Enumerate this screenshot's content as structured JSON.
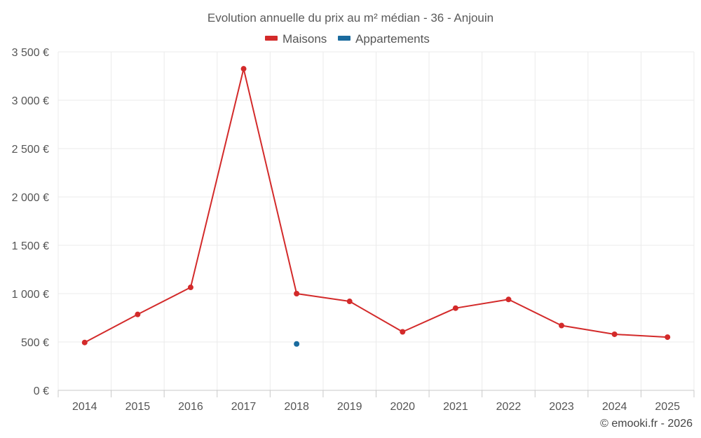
{
  "chart_data": {
    "type": "line",
    "title": "Evolution annuelle du prix au m² médian - 36 - Anjouin",
    "categories": [
      "2014",
      "2015",
      "2016",
      "2017",
      "2018",
      "2019",
      "2020",
      "2021",
      "2022",
      "2023",
      "2024",
      "2025"
    ],
    "series": [
      {
        "name": "Maisons",
        "color": "#d32a2a",
        "values": [
          495,
          785,
          1065,
          3325,
          1000,
          920,
          605,
          850,
          940,
          670,
          580,
          550
        ]
      },
      {
        "name": "Appartements",
        "color": "#1a6b9e",
        "values": [
          null,
          null,
          null,
          null,
          480,
          null,
          null,
          null,
          null,
          null,
          null,
          null
        ]
      }
    ],
    "ylim": [
      0,
      3500
    ],
    "yticks": [
      0,
      500,
      1000,
      1500,
      2000,
      2500,
      3000,
      3500
    ],
    "ytick_labels": [
      "0 €",
      "500 €",
      "1 000 €",
      "1 500 €",
      "2 000 €",
      "2 500 €",
      "3 000 €",
      "3 500 €"
    ],
    "xlabel": "",
    "ylabel": "",
    "legend_position": "top-center",
    "grid": true
  },
  "credit": "© emooki.fr - 2026"
}
